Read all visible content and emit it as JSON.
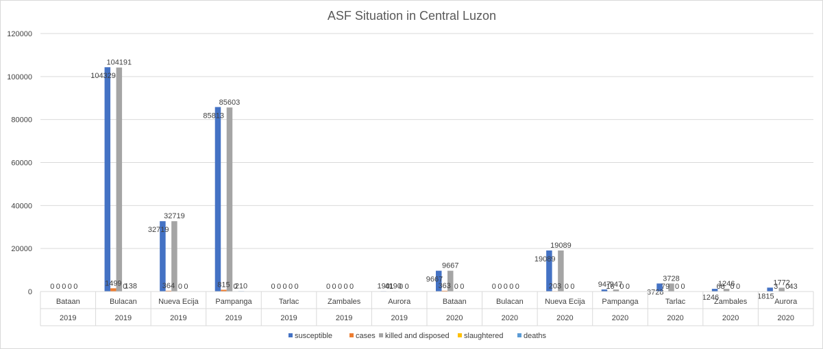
{
  "chart_data": {
    "type": "bar",
    "title": "ASF Situation in Central Luzon",
    "xlabel": "",
    "ylabel": "",
    "ylim": [
      0,
      120000
    ],
    "yticks": [
      0,
      20000,
      40000,
      60000,
      80000,
      100000,
      120000
    ],
    "ytick_labels": [
      "0",
      "20000",
      "40000",
      "60000",
      "80000",
      "100000",
      "120000"
    ],
    "grid": true,
    "legend_position": "bottom",
    "categories": [
      "Bataan",
      "Bulacan",
      "Nueva Ecija",
      "Pampanga",
      "Tarlac",
      "Zambales",
      "Aurora",
      "Bataan",
      "Bulacan",
      "Nueva Ecija",
      "Pampanga",
      "Tarlac",
      "Zambales",
      "Aurora"
    ],
    "years": [
      "2019",
      "2019",
      "2019",
      "2019",
      "2019",
      "2019",
      "2019",
      "2020",
      "2020",
      "2020",
      "2020",
      "2020",
      "2020",
      "2020"
    ],
    "series": [
      {
        "name": "susceptible",
        "color": "#4472c4",
        "values": [
          0,
          104329,
          32719,
          85813,
          0,
          0,
          190,
          9667,
          0,
          19089,
          947,
          3728,
          1246,
          1815
        ]
      },
      {
        "name": "cases",
        "color": "#ed7d31",
        "values": [
          0,
          1499,
          364,
          815,
          0,
          0,
          41,
          363,
          0,
          203,
          16,
          79,
          68,
          3
        ]
      },
      {
        "name": "killed and disposed",
        "color": "#a5a5a5",
        "values": [
          0,
          104191,
          32719,
          85603,
          0,
          0,
          190,
          9667,
          0,
          19089,
          947,
          3728,
          1246,
          1772
        ]
      },
      {
        "name": "slaughtered",
        "color": "#ffc000",
        "values": [
          0,
          0,
          0,
          0,
          0,
          0,
          0,
          0,
          0,
          0,
          0,
          0,
          0,
          0
        ]
      },
      {
        "name": "deaths",
        "color": "#5b9bd5",
        "values": [
          0,
          138,
          0,
          210,
          0,
          0,
          0,
          0,
          0,
          0,
          0,
          0,
          0,
          43
        ]
      }
    ]
  }
}
